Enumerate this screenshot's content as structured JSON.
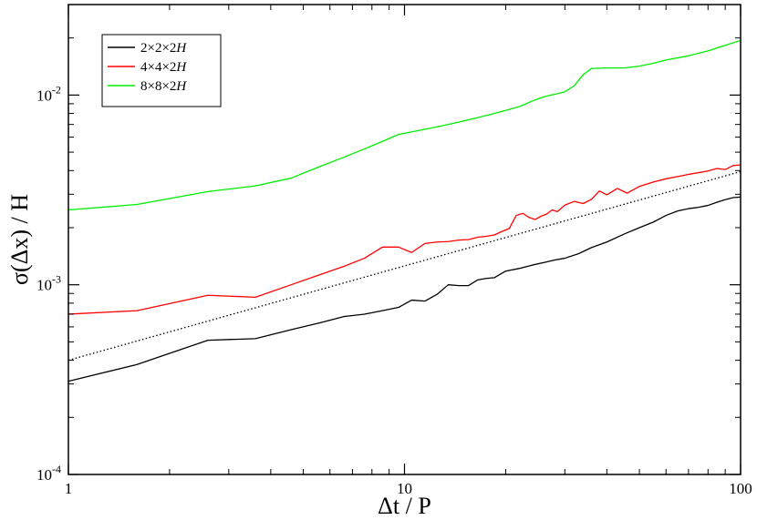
{
  "chart_data": {
    "type": "line",
    "xlabel": "Δt / P",
    "ylabel": "σ(Δx) / H",
    "xscale": "log",
    "yscale": "log",
    "xlim": [
      1,
      100
    ],
    "ylim": [
      0.0001,
      0.03
    ],
    "grid": false,
    "legend_position": "top-left",
    "x_ticks": [
      {
        "value": 1,
        "label": "1"
      },
      {
        "value": 10,
        "label": "10"
      },
      {
        "value": 100,
        "label": "100"
      }
    ],
    "y_ticks": [
      {
        "value": 0.0001,
        "base": "10",
        "exp": "-4"
      },
      {
        "value": 0.001,
        "base": "10",
        "exp": "-3"
      },
      {
        "value": 0.01,
        "base": "10",
        "exp": "-2"
      }
    ],
    "series": [
      {
        "name": "2×2×2H",
        "color": "#000000",
        "points": [
          [
            1,
            0.00031
          ],
          [
            1.6,
            0.00038
          ],
          [
            2.6,
            0.00051
          ],
          [
            3.6,
            0.00052
          ],
          [
            4.6,
            0.00058
          ],
          [
            5.6,
            0.00063
          ],
          [
            6.6,
            0.00068
          ],
          [
            7.6,
            0.0007
          ],
          [
            8.6,
            0.00073
          ],
          [
            9.6,
            0.00076
          ],
          [
            10.5,
            0.00083
          ],
          [
            11.5,
            0.00082
          ],
          [
            12.5,
            0.00089
          ],
          [
            13.5,
            0.001
          ],
          [
            14.5,
            0.00099
          ],
          [
            15.5,
            0.00099
          ],
          [
            16.5,
            0.00106
          ],
          [
            17.5,
            0.00108
          ],
          [
            18.5,
            0.00109
          ],
          [
            20,
            0.00118
          ],
          [
            22,
            0.00122
          ],
          [
            24,
            0.00127
          ],
          [
            26,
            0.00131
          ],
          [
            28,
            0.00135
          ],
          [
            30,
            0.00138
          ],
          [
            33,
            0.00146
          ],
          [
            36,
            0.00157
          ],
          [
            40,
            0.00168
          ],
          [
            45,
            0.00185
          ],
          [
            50,
            0.002
          ],
          [
            55,
            0.00214
          ],
          [
            60,
            0.00232
          ],
          [
            65,
            0.00245
          ],
          [
            70,
            0.00252
          ],
          [
            75,
            0.00256
          ],
          [
            80,
            0.00262
          ],
          [
            85,
            0.00272
          ],
          [
            90,
            0.00281
          ],
          [
            95,
            0.00288
          ],
          [
            100,
            0.0029
          ]
        ]
      },
      {
        "name": "4×4×2H",
        "color": "#ff0000",
        "points": [
          [
            1,
            0.0007
          ],
          [
            1.6,
            0.00073
          ],
          [
            2.6,
            0.00088
          ],
          [
            3.6,
            0.00086
          ],
          [
            4.6,
            0.001
          ],
          [
            5.6,
            0.00113
          ],
          [
            6.6,
            0.00125
          ],
          [
            7.6,
            0.00138
          ],
          [
            8.6,
            0.00158
          ],
          [
            9.6,
            0.00158
          ],
          [
            10.5,
            0.00148
          ],
          [
            11.5,
            0.00165
          ],
          [
            12.5,
            0.00168
          ],
          [
            13.5,
            0.00169
          ],
          [
            14.5,
            0.00172
          ],
          [
            15.5,
            0.00173
          ],
          [
            16.5,
            0.00178
          ],
          [
            17.5,
            0.0018
          ],
          [
            18.5,
            0.00183
          ],
          [
            19.5,
            0.00191
          ],
          [
            20.5,
            0.00198
          ],
          [
            21.5,
            0.00232
          ],
          [
            22.5,
            0.00238
          ],
          [
            23.5,
            0.00226
          ],
          [
            24.5,
            0.00221
          ],
          [
            25.5,
            0.0023
          ],
          [
            26.5,
            0.00236
          ],
          [
            27.5,
            0.00248
          ],
          [
            28.5,
            0.00243
          ],
          [
            30,
            0.00263
          ],
          [
            32,
            0.00275
          ],
          [
            34,
            0.00268
          ],
          [
            36,
            0.00282
          ],
          [
            38,
            0.00312
          ],
          [
            40,
            0.00298
          ],
          [
            43,
            0.00322
          ],
          [
            46,
            0.00304
          ],
          [
            50,
            0.0033
          ],
          [
            55,
            0.00348
          ],
          [
            60,
            0.00362
          ],
          [
            65,
            0.00372
          ],
          [
            70,
            0.00382
          ],
          [
            75,
            0.0039
          ],
          [
            80,
            0.00398
          ],
          [
            85,
            0.0041
          ],
          [
            90,
            0.00405
          ],
          [
            95,
            0.00425
          ],
          [
            100,
            0.00428
          ]
        ]
      },
      {
        "name": "8×8×2H",
        "color": "#00ee00",
        "points": [
          [
            1,
            0.00248
          ],
          [
            1.6,
            0.00265
          ],
          [
            2.6,
            0.0031
          ],
          [
            3.6,
            0.00332
          ],
          [
            4.6,
            0.00365
          ],
          [
            5.6,
            0.0042
          ],
          [
            6.6,
            0.0047
          ],
          [
            7.6,
            0.0052
          ],
          [
            8.6,
            0.0057
          ],
          [
            9.6,
            0.0062
          ],
          [
            11,
            0.0065
          ],
          [
            12.5,
            0.0068
          ],
          [
            14,
            0.0071
          ],
          [
            16,
            0.0075
          ],
          [
            18,
            0.0079
          ],
          [
            20,
            0.0083
          ],
          [
            22,
            0.0087
          ],
          [
            24,
            0.0093
          ],
          [
            26,
            0.0098
          ],
          [
            28,
            0.0101
          ],
          [
            30,
            0.0104
          ],
          [
            32,
            0.0112
          ],
          [
            34,
            0.0128
          ],
          [
            36,
            0.0138
          ],
          [
            40,
            0.0139
          ],
          [
            45,
            0.0139
          ],
          [
            50,
            0.0142
          ],
          [
            55,
            0.0147
          ],
          [
            60,
            0.0153
          ],
          [
            70,
            0.0161
          ],
          [
            80,
            0.0171
          ],
          [
            90,
            0.0183
          ],
          [
            100,
            0.0194
          ]
        ]
      },
      {
        "name": "",
        "style": "dotted",
        "color": "#000000",
        "points": [
          [
            1,
            0.0004
          ],
          [
            100,
            0.00395
          ]
        ]
      }
    ]
  }
}
